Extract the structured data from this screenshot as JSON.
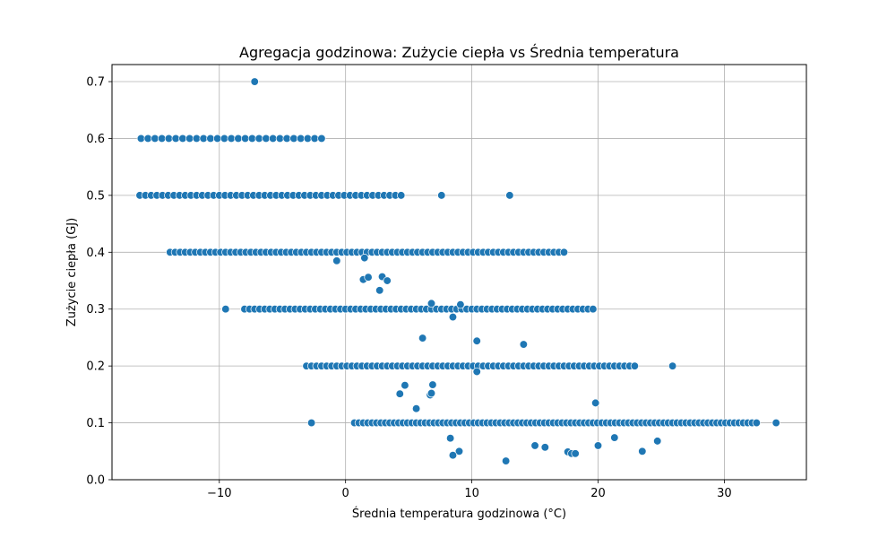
{
  "chart_data": {
    "type": "scatter",
    "title": "Agregacja godzinowa: Zużycie ciepła vs Średnia temperatura",
    "xlabel": "Średnia temperatura godzinowa (°C)",
    "ylabel": "Zużycie ciepła (GJ)",
    "xlim": [
      -18.5,
      36.5
    ],
    "ylim": [
      0.0,
      0.73
    ],
    "xticks": [
      -10,
      0,
      10,
      20,
      30
    ],
    "xtick_labels": [
      "−10",
      "0",
      "10",
      "20",
      "30"
    ],
    "yticks": [
      0.0,
      0.1,
      0.2,
      0.3,
      0.4,
      0.5,
      0.6,
      0.7
    ],
    "ytick_labels": [
      "0.0",
      "0.1",
      "0.2",
      "0.3",
      "0.4",
      "0.5",
      "0.6",
      "0.7"
    ],
    "grid": true,
    "marker_color": "#1f77b4",
    "bands": [
      {
        "y": 0.6,
        "x_min": -16.2,
        "x_max": -1.6,
        "step": 0.55
      },
      {
        "y": 0.5,
        "x_min": -16.3,
        "x_max": 4.8,
        "step": 0.45
      },
      {
        "y": 0.4,
        "x_min": -13.9,
        "x_max": 17.6,
        "step": 0.4
      },
      {
        "y": 0.3,
        "x_min": -8.0,
        "x_max": 19.6,
        "step": 0.4
      },
      {
        "y": 0.2,
        "x_min": -3.1,
        "x_max": 23.0,
        "step": 0.4
      },
      {
        "y": 0.1,
        "x_min": 0.7,
        "x_max": 32.7,
        "step": 0.35
      }
    ],
    "points": [
      {
        "x": -7.2,
        "y": 0.7
      },
      {
        "x": 7.6,
        "y": 0.5
      },
      {
        "x": 13.0,
        "y": 0.5
      },
      {
        "x": -9.5,
        "y": 0.3
      },
      {
        "x": 25.9,
        "y": 0.2
      },
      {
        "x": -2.7,
        "y": 0.1
      },
      {
        "x": 34.1,
        "y": 0.1
      },
      {
        "x": -0.7,
        "y": 0.385
      },
      {
        "x": 1.5,
        "y": 0.39
      },
      {
        "x": 1.4,
        "y": 0.352
      },
      {
        "x": 1.8,
        "y": 0.356
      },
      {
        "x": 2.9,
        "y": 0.357
      },
      {
        "x": 3.3,
        "y": 0.35
      },
      {
        "x": 2.7,
        "y": 0.333
      },
      {
        "x": 6.8,
        "y": 0.31
      },
      {
        "x": 9.1,
        "y": 0.308
      },
      {
        "x": 8.5,
        "y": 0.286
      },
      {
        "x": 6.1,
        "y": 0.249
      },
      {
        "x": 10.4,
        "y": 0.244
      },
      {
        "x": 14.1,
        "y": 0.238
      },
      {
        "x": 10.4,
        "y": 0.19
      },
      {
        "x": 4.7,
        "y": 0.166
      },
      {
        "x": 6.9,
        "y": 0.167
      },
      {
        "x": 4.3,
        "y": 0.151
      },
      {
        "x": 6.7,
        "y": 0.149
      },
      {
        "x": 6.8,
        "y": 0.152
      },
      {
        "x": 5.6,
        "y": 0.125
      },
      {
        "x": 19.8,
        "y": 0.135
      },
      {
        "x": 8.3,
        "y": 0.073
      },
      {
        "x": 21.3,
        "y": 0.074
      },
      {
        "x": 24.7,
        "y": 0.068
      },
      {
        "x": 15.0,
        "y": 0.06
      },
      {
        "x": 15.8,
        "y": 0.057
      },
      {
        "x": 20.0,
        "y": 0.06
      },
      {
        "x": 17.6,
        "y": 0.049
      },
      {
        "x": 17.9,
        "y": 0.046
      },
      {
        "x": 18.2,
        "y": 0.046
      },
      {
        "x": 23.5,
        "y": 0.05
      },
      {
        "x": 9.0,
        "y": 0.05
      },
      {
        "x": 8.5,
        "y": 0.043
      },
      {
        "x": 12.7,
        "y": 0.033
      }
    ]
  }
}
